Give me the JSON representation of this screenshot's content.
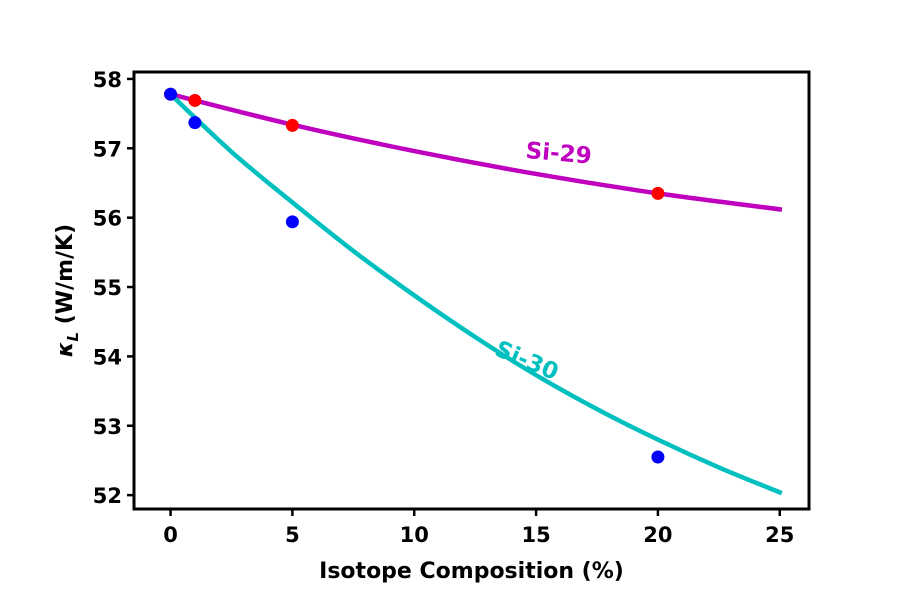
{
  "chart_data": {
    "type": "scatter",
    "xlabel": "Isotope Composition (%)",
    "ylabel": "κ_L (W/m/K)",
    "ylabel_parts": {
      "symbol": "κ",
      "subscript": "L",
      "unit": " (W/m/K)"
    },
    "xlim": [
      -1.5,
      26.2
    ],
    "ylim": [
      51.8,
      58.1
    ],
    "x_ticks": [
      0,
      5,
      10,
      15,
      20,
      25
    ],
    "y_ticks": [
      52,
      53,
      54,
      55,
      56,
      57,
      58
    ],
    "grid": false,
    "series": [
      {
        "name": "Si-29",
        "color": "#bf00bf",
        "point_color": "#ff0000",
        "points": {
          "x": [
            0,
            1,
            5,
            20
          ],
          "y": [
            57.78,
            57.69,
            57.33,
            56.35
          ]
        },
        "fit_curve": {
          "x": [
            0,
            5,
            10,
            15,
            20,
            25
          ],
          "y": [
            57.78,
            57.34,
            56.96,
            56.63,
            56.35,
            56.12
          ]
        }
      },
      {
        "name": "Si-30",
        "color": "#00bfbf",
        "point_color": "#0000ff",
        "points": {
          "x": [
            0,
            1,
            5,
            20
          ],
          "y": [
            57.78,
            57.37,
            55.94,
            52.55
          ]
        },
        "fit_curve": {
          "x": [
            0,
            2.5,
            5,
            7.5,
            10,
            12.5,
            15,
            17.5,
            20,
            22.5,
            25
          ],
          "y": [
            57.78,
            56.95,
            56.22,
            55.52,
            54.88,
            54.28,
            53.73,
            53.24,
            52.8,
            52.4,
            52.04
          ]
        }
      }
    ],
    "annotations": [
      {
        "text": "Si-29",
        "series": "Si-29",
        "x": 15.9,
        "y": 56.82,
        "rotation": 5
      },
      {
        "text": "Si-30",
        "series": "Si-30",
        "x": 14.5,
        "y": 53.84,
        "rotation": 23
      }
    ]
  }
}
